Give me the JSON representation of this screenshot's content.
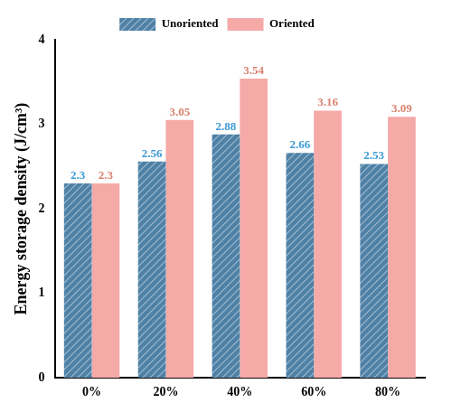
{
  "chart_data": {
    "type": "bar",
    "categories": [
      "0%",
      "20%",
      "40%",
      "60%",
      "80%"
    ],
    "y_label": "Energy storage density (J/cm³)",
    "series": [
      {
        "name": "Unoriented",
        "color": "#4f81a6",
        "label_color": "#3d9ad6",
        "values": [
          2.3,
          2.56,
          2.88,
          2.66,
          2.53
        ]
      },
      {
        "name": "Oriented",
        "color": "#f5aaa8",
        "label_color": "#d9826f",
        "values": [
          2.3,
          3.05,
          3.54,
          3.16,
          3.09
        ]
      }
    ],
    "ylim": [
      0,
      4
    ],
    "yticks": [
      0,
      1,
      2,
      3,
      4
    ],
    "grid": false,
    "legend": "top",
    "data_labels": true
  }
}
